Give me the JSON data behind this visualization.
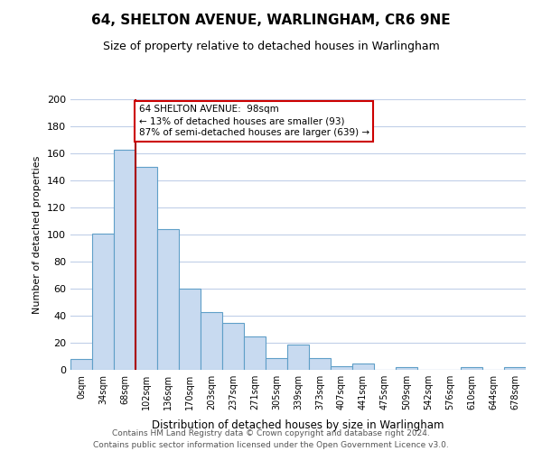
{
  "title": "64, SHELTON AVENUE, WARLINGHAM, CR6 9NE",
  "subtitle": "Size of property relative to detached houses in Warlingham",
  "xlabel": "Distribution of detached houses by size in Warlingham",
  "ylabel": "Number of detached properties",
  "bin_labels": [
    "0sqm",
    "34sqm",
    "68sqm",
    "102sqm",
    "136sqm",
    "170sqm",
    "203sqm",
    "237sqm",
    "271sqm",
    "305sqm",
    "339sqm",
    "373sqm",
    "407sqm",
    "441sqm",
    "475sqm",
    "509sqm",
    "542sqm",
    "576sqm",
    "610sqm",
    "644sqm",
    "678sqm"
  ],
  "bar_heights": [
    8,
    101,
    163,
    150,
    104,
    60,
    43,
    35,
    25,
    9,
    19,
    9,
    3,
    5,
    0,
    2,
    0,
    0,
    2,
    0,
    2
  ],
  "bar_color": "#c8daf0",
  "bar_edge_color": "#5f9fc8",
  "vline_x": 3,
  "vline_color": "#aa0000",
  "annotation_title": "64 SHELTON AVENUE:  98sqm",
  "annotation_line1": "← 13% of detached houses are smaller (93)",
  "annotation_line2": "87% of semi-detached houses are larger (639) →",
  "annotation_box_color": "#ffffff",
  "annotation_box_edge": "#cc0000",
  "ylim": [
    0,
    200
  ],
  "yticks": [
    0,
    20,
    40,
    60,
    80,
    100,
    120,
    140,
    160,
    180,
    200
  ],
  "footer1": "Contains HM Land Registry data © Crown copyright and database right 2024.",
  "footer2": "Contains public sector information licensed under the Open Government Licence v3.0.",
  "bg_color": "#ffffff",
  "grid_color": "#c0cfe8"
}
